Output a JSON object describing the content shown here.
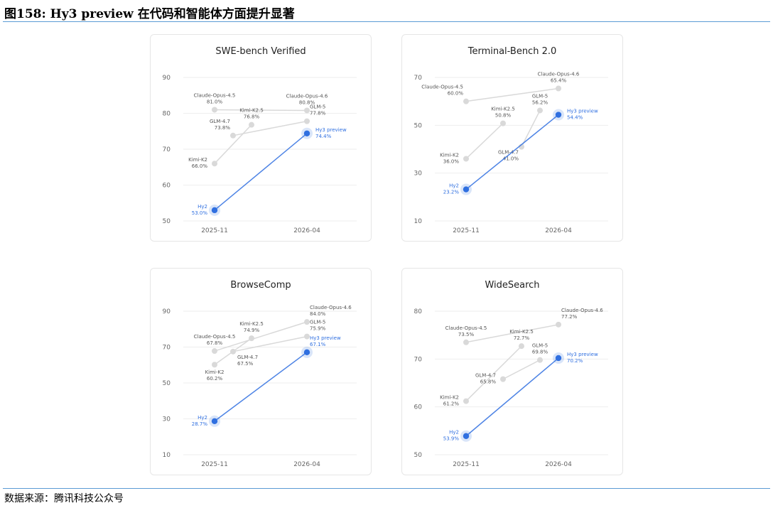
{
  "figure_title": "图158:  Hy3 preview 在代码和智能体方面提升显著",
  "source": "数据来源：腾讯科技公众号",
  "colors": {
    "highlight": "#2f6fe0",
    "grey_point": "#d9d9d9",
    "grey_line": "#d9d9d9",
    "label_grey": "#555555",
    "rule": "#5b9bd5"
  },
  "chart_data": [
    {
      "type": "line",
      "title": "SWE-bench Verified",
      "categories": [
        "2025-11",
        "2026-04"
      ],
      "ylim": [
        50,
        90
      ],
      "yticks": [
        50,
        60,
        70,
        80,
        90
      ],
      "grid": true,
      "highlight_series": {
        "points": [
          {
            "label": "Hy2",
            "x": "2025-11",
            "y": 53.0,
            "value": "53.0%"
          },
          {
            "label": "Hy3 preview",
            "x": "2026-04",
            "y": 74.4,
            "value": "74.4%"
          }
        ]
      },
      "series": [
        {
          "name": "Claude-Opus",
          "points": [
            {
              "label": "Claude-Opus-4.5",
              "x": "2025-11",
              "y": 81.0,
              "value": "81.0%"
            },
            {
              "label": "Claude-Opus-4.6",
              "x": "2026-04",
              "y": 80.8,
              "value": "80.8%"
            }
          ]
        },
        {
          "name": "Kimi",
          "points": [
            {
              "label": "Kimi-K2",
              "x": "2025-11",
              "y": 66.0,
              "value": "66.0%"
            },
            {
              "label": "Kimi-K2.5",
              "x": "2026-01",
              "y": 76.8,
              "value": "76.8%"
            }
          ]
        },
        {
          "name": "GLM",
          "points": [
            {
              "label": "GLM-4.7",
              "x": "2025-12",
              "y": 73.8,
              "value": "73.8%"
            },
            {
              "label": "GLM-5",
              "x": "2026-04",
              "y": 77.8,
              "value": "77.8%"
            }
          ]
        }
      ]
    },
    {
      "type": "line",
      "title": "Terminal-Bench 2.0",
      "categories": [
        "2025-11",
        "2026-04"
      ],
      "ylim": [
        10,
        70
      ],
      "yticks": [
        10,
        30,
        50,
        70
      ],
      "grid": true,
      "highlight_series": {
        "points": [
          {
            "label": "Hy2",
            "x": "2025-11",
            "y": 23.2,
            "value": "23.2%"
          },
          {
            "label": "Hy3 preview",
            "x": "2026-04",
            "y": 54.4,
            "value": "54.4%"
          }
        ]
      },
      "series": [
        {
          "name": "Claude-Opus",
          "points": [
            {
              "label": "Claude-Opus-4.5",
              "x": "2025-11",
              "y": 60.0,
              "value": "60.0%"
            },
            {
              "label": "Claude-Opus-4.6",
              "x": "2026-04",
              "y": 65.4,
              "value": "65.4%"
            }
          ]
        },
        {
          "name": "Kimi",
          "points": [
            {
              "label": "Kimi-K2",
              "x": "2025-11",
              "y": 36.0,
              "value": "36.0%"
            },
            {
              "label": "Kimi-K2.5",
              "x": "2026-01",
              "y": 50.8,
              "value": "50.8%"
            }
          ]
        },
        {
          "name": "GLM",
          "points": [
            {
              "label": "GLM-4.7",
              "x": "2026-02",
              "y": 41.0,
              "value": "41.0%"
            },
            {
              "label": "GLM-5",
              "x": "2026-03",
              "y": 56.2,
              "value": "56.2%"
            }
          ]
        }
      ]
    },
    {
      "type": "line",
      "title": "BrowseComp",
      "categories": [
        "2025-11",
        "2026-04"
      ],
      "ylim": [
        10,
        90
      ],
      "yticks": [
        10,
        30,
        50,
        70,
        90
      ],
      "grid": true,
      "highlight_series": {
        "points": [
          {
            "label": "Hy2",
            "x": "2025-11",
            "y": 28.7,
            "value": "28.7%"
          },
          {
            "label": "Hy3 preview",
            "x": "2026-04",
            "y": 67.1,
            "value": "67.1%"
          }
        ]
      },
      "series": [
        {
          "name": "Claude-Opus",
          "points": [
            {
              "label": "Claude-Opus-4.5",
              "x": "2025-11",
              "y": 67.8,
              "value": "67.8%"
            },
            {
              "label": "Claude-Opus-4.6",
              "x": "2026-04",
              "y": 84.0,
              "value": "84.0%"
            }
          ]
        },
        {
          "name": "Kimi",
          "points": [
            {
              "label": "Kimi-K2",
              "x": "2025-11",
              "y": 60.2,
              "value": "60.2%"
            },
            {
              "label": "Kimi-K2.5",
              "x": "2026-01",
              "y": 74.9,
              "value": "74.9%"
            }
          ]
        },
        {
          "name": "GLM",
          "points": [
            {
              "label": "GLM-4.7",
              "x": "2025-12",
              "y": 67.5,
              "value": "67.5%"
            },
            {
              "label": "GLM-5",
              "x": "2026-04",
              "y": 75.9,
              "value": "75.9%"
            }
          ]
        }
      ]
    },
    {
      "type": "line",
      "title": "WideSearch",
      "categories": [
        "2025-11",
        "2026-04"
      ],
      "ylim": [
        50,
        80
      ],
      "yticks": [
        50,
        60,
        70,
        80
      ],
      "grid": true,
      "highlight_series": {
        "points": [
          {
            "label": "Hy2",
            "x": "2025-11",
            "y": 53.9,
            "value": "53.9%"
          },
          {
            "label": "Hy3 preview",
            "x": "2026-04",
            "y": 70.2,
            "value": "70.2%"
          }
        ]
      },
      "series": [
        {
          "name": "Claude-Opus",
          "points": [
            {
              "label": "Claude-Opus-4.5",
              "x": "2025-11",
              "y": 73.5,
              "value": "73.5%"
            },
            {
              "label": "Claude-Opus-4.6",
              "x": "2026-04",
              "y": 77.2,
              "value": "77.2%"
            }
          ]
        },
        {
          "name": "Kimi",
          "points": [
            {
              "label": "Kimi-K2",
              "x": "2025-11",
              "y": 61.2,
              "value": "61.2%"
            },
            {
              "label": "Kimi-K2.5",
              "x": "2026-02",
              "y": 72.7,
              "value": "72.7%"
            }
          ]
        },
        {
          "name": "GLM",
          "points": [
            {
              "label": "GLM-4.7",
              "x": "2026-01",
              "y": 65.8,
              "value": "65.8%"
            },
            {
              "label": "GLM-5",
              "x": "2026-03",
              "y": 69.8,
              "value": "69.8%"
            }
          ]
        }
      ]
    }
  ]
}
